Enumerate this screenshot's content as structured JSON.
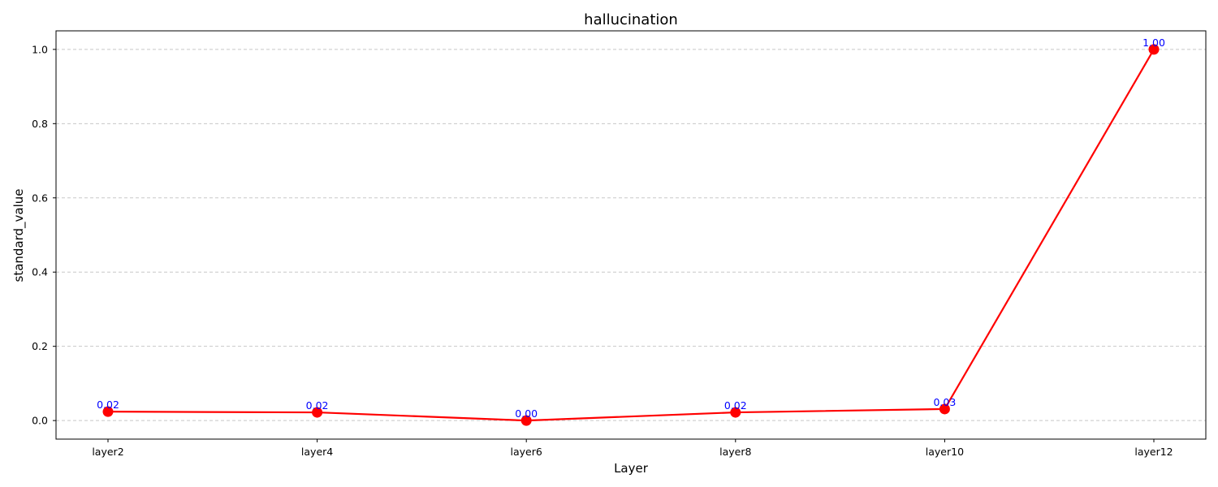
{
  "chart_data": {
    "type": "line",
    "title": "hallucination",
    "xlabel": "Layer",
    "ylabel": "standard_value",
    "categories": [
      "layer2",
      "layer4",
      "layer6",
      "layer8",
      "layer10",
      "layer12"
    ],
    "series": [
      {
        "values": [
          0.024,
          0.022,
          0.0,
          0.022,
          0.031,
          1.0
        ],
        "labels": [
          "0.02",
          "0.02",
          "0.00",
          "0.02",
          "0.03",
          "1.00"
        ]
      }
    ],
    "ylim": [
      -0.05,
      1.05
    ],
    "yticks": [
      0.0,
      0.2,
      0.4,
      0.6,
      0.8,
      1.0
    ],
    "ytick_labels": [
      "0.0",
      "0.2",
      "0.4",
      "0.6",
      "0.8",
      "1.0"
    ],
    "grid": "y-dashed",
    "legend": "none",
    "colors": {
      "line": "#ff0000",
      "marker": "#ff0000",
      "data_label": "#0000ff",
      "grid": "#c8c8c8",
      "axes": "#000000"
    }
  }
}
